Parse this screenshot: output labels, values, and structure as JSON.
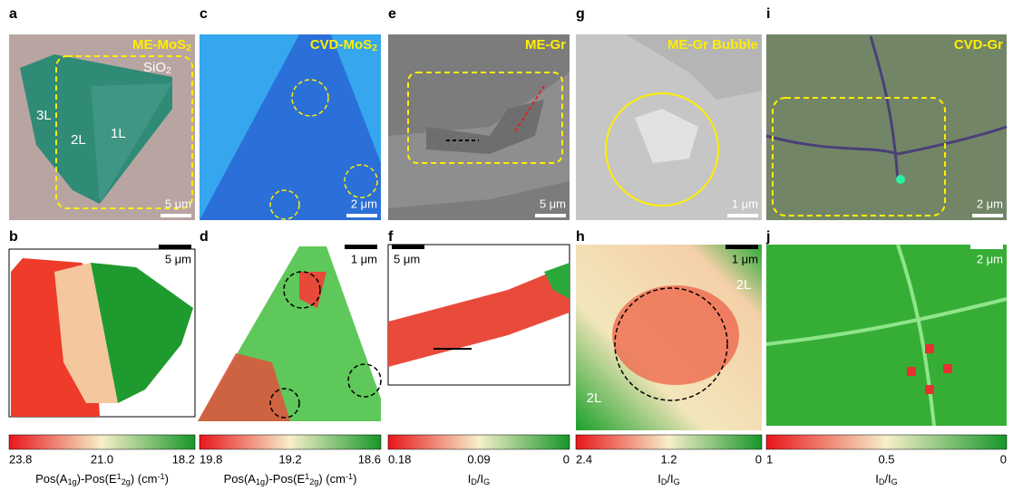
{
  "top": [
    {
      "letter": "a",
      "title": [
        "ME-MoS",
        {
          "sub": "2"
        }
      ],
      "scale": "5 μm",
      "labels": [
        "3L",
        "2L",
        "1L",
        [
          "SiO",
          {
            "sub": "2"
          }
        ]
      ]
    },
    {
      "letter": "c",
      "title": [
        "CVD-MoS",
        {
          "sub": "2"
        }
      ],
      "scale": "2 μm"
    },
    {
      "letter": "e",
      "title": [
        "ME-Gr"
      ],
      "scale": "5 μm"
    },
    {
      "letter": "g",
      "title": [
        "ME-Gr Bubble"
      ],
      "scale": "1 μm"
    },
    {
      "letter": "i",
      "title": [
        "CVD-Gr"
      ],
      "scale": "2 μm"
    }
  ],
  "bottom": [
    {
      "letter": "b",
      "scale": "5 μm"
    },
    {
      "letter": "d",
      "scale": "1 μm"
    },
    {
      "letter": "f",
      "scale": "5 μm"
    },
    {
      "letter": "h",
      "scale": "1 μm",
      "labels": [
        "2L",
        "2L"
      ]
    },
    {
      "letter": "j",
      "scale": "2 μm"
    }
  ],
  "colorbars": [
    {
      "ticks": [
        "23.8",
        "21.0",
        "18.2"
      ],
      "title": [
        "Pos(A",
        {
          "sub": "1g"
        },
        ")-Pos(E",
        {
          "sup": "1"
        },
        {
          "sub": "2g"
        },
        ") (cm",
        {
          "sup": "-1"
        },
        ")"
      ]
    },
    {
      "ticks": [
        "19.8",
        "19.2",
        "18.6"
      ],
      "title": [
        "Pos(A",
        {
          "sub": "1g"
        },
        ")-Pos(E",
        {
          "sup": "1"
        },
        {
          "sub": "2g"
        },
        ") (cm",
        {
          "sup": "-1"
        },
        ")"
      ]
    },
    {
      "ticks": [
        "0.18",
        "0.09",
        "0"
      ],
      "title": [
        "I",
        {
          "sub": "D"
        },
        "/I",
        {
          "sub": "G"
        }
      ]
    },
    {
      "ticks": [
        "2.4",
        "1.2",
        "0"
      ],
      "title": [
        "I",
        {
          "sub": "D"
        },
        "/I",
        {
          "sub": "G"
        }
      ]
    },
    {
      "ticks": [
        "1",
        "0.5",
        "0"
      ],
      "title": [
        "I",
        {
          "sub": "D"
        },
        "/I",
        {
          "sub": "G"
        }
      ]
    }
  ]
}
